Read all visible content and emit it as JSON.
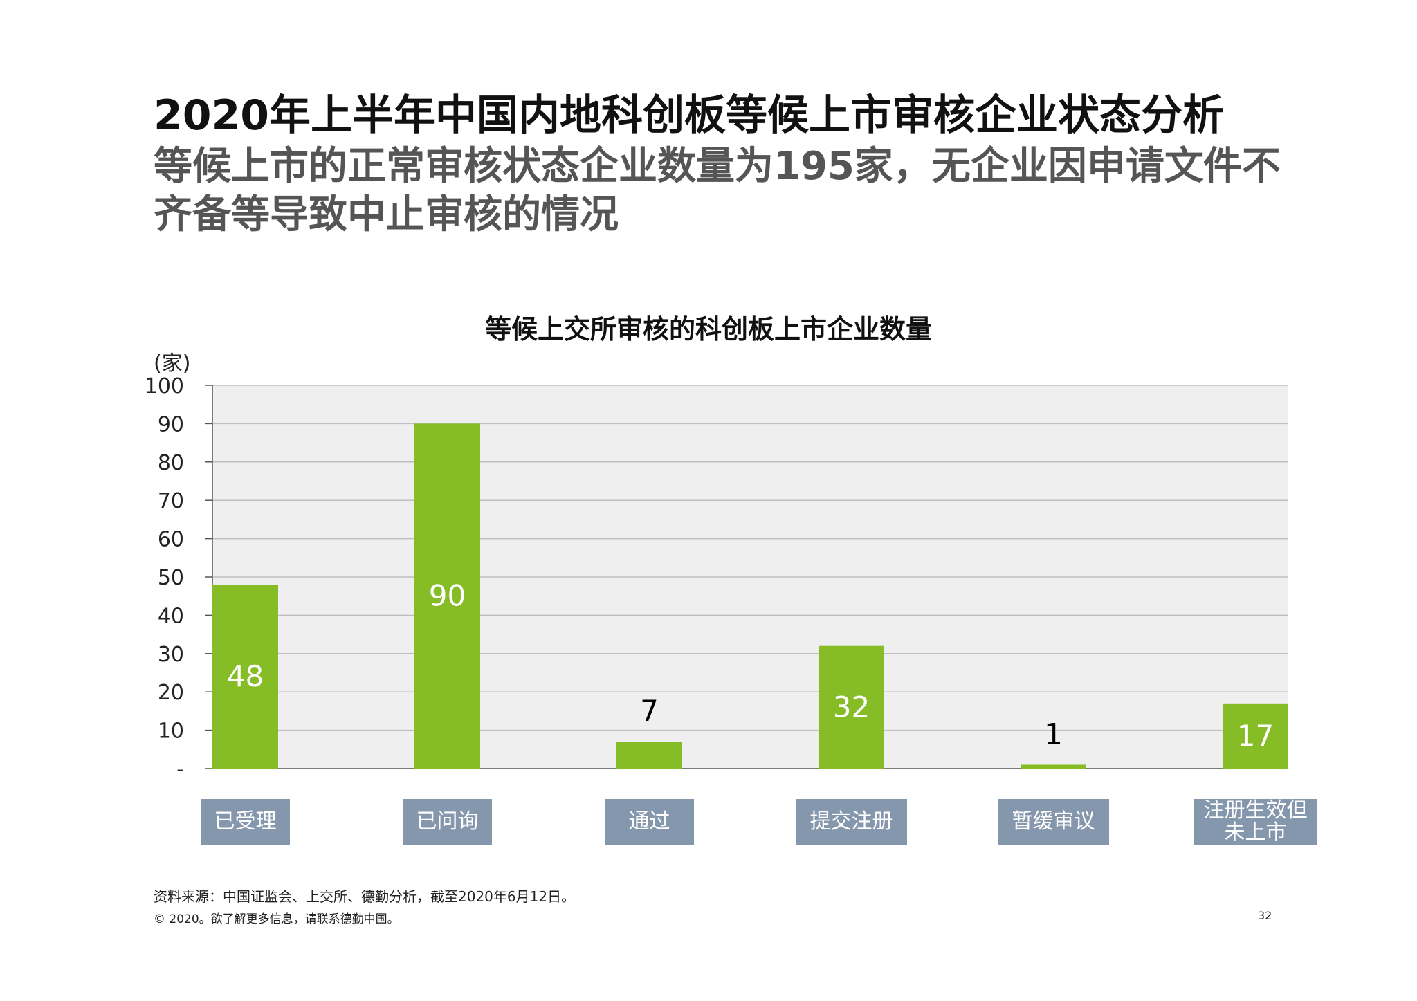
{
  "slide": {
    "title": "2020年上半年中国内地科创板等候上市审核企业状态分析",
    "subtitle": "等候上市的正常审核状态企业数量为195家，无企业因申请文件不齐备等导致中止审核的情况",
    "source": "资料来源：中国证监会、上交所、德勤分析，截至2020年6月12日。",
    "copyright": "© 2020。欲了解更多信息，请联系德勤中国。",
    "page_number": "32"
  },
  "colors": {
    "bar": "#86bc25",
    "plot_bg": "#efefef",
    "category_box": "#8597ad",
    "grid": "#bfbfbf"
  },
  "chart_data": {
    "type": "bar",
    "title": "等候上交所审核的科创板上市企业数量",
    "ylabel": "(家)",
    "ylim": [
      0,
      100
    ],
    "yticks": [
      "-",
      "10",
      "20",
      "30",
      "40",
      "50",
      "60",
      "70",
      "80",
      "90",
      "100"
    ],
    "categories": [
      "已受理",
      "已问询",
      "通过",
      "提交注册",
      "暂缓审议",
      "注册生效但未上市"
    ],
    "values": [
      48,
      90,
      7,
      32,
      1,
      17
    ],
    "data_labels": [
      "48",
      "90",
      "7",
      "32",
      "1",
      "17"
    ],
    "grid": true,
    "legend": "none"
  }
}
